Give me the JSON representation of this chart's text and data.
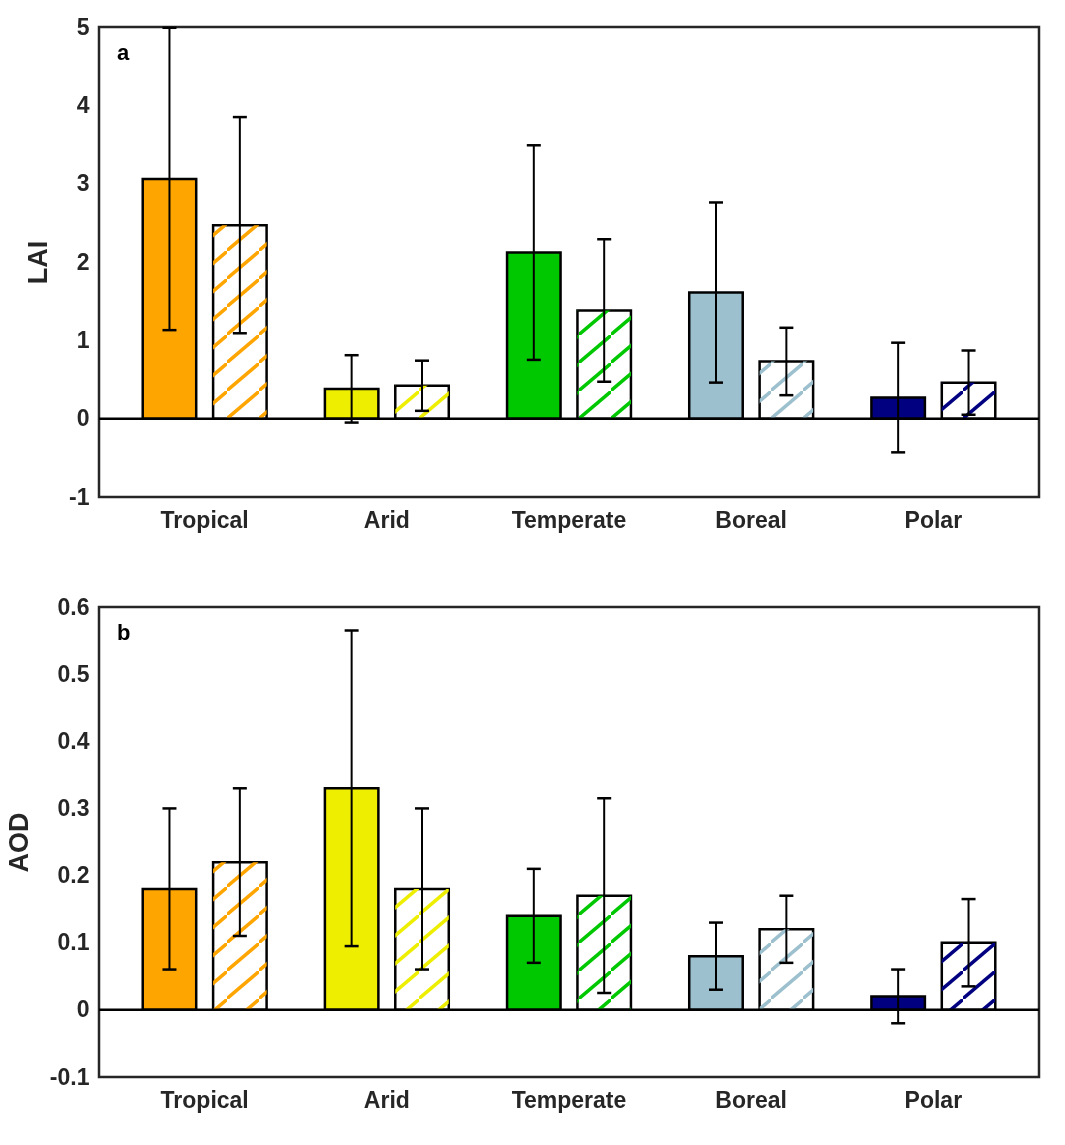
{
  "chart_data": [
    {
      "type": "bar",
      "ylabel": "LAI",
      "annotations": [
        "a"
      ],
      "categories": [
        "Tropical",
        "Arid",
        "Temperate",
        "Boreal",
        "Polar"
      ],
      "ylim": [
        -1,
        5
      ],
      "yticks": [
        -1,
        0,
        1,
        2,
        3,
        4,
        5
      ],
      "ref_lines": [
        {
          "axis": "y",
          "value": 0,
          "color": "#000000"
        }
      ],
      "series": [
        {
          "colors": [
            "#ffa500",
            "#eeee00",
            "#00c800",
            "#9dc0ce",
            "#000080"
          ],
          "values": [
            3.06,
            0.38,
            2.12,
            1.61,
            0.27
          ],
          "errors": [
            1.93,
            0.43,
            1.37,
            1.15,
            0.7
          ]
        },
        {
          "colors": [
            "#ffffff",
            "#ffffff",
            "#ffffff",
            "#ffffff",
            "#ffffff"
          ],
          "values": [
            2.47,
            0.42,
            1.38,
            0.73,
            0.46
          ],
          "errors": [
            1.38,
            0.32,
            0.91,
            0.43,
            0.41
          ]
        }
      ]
    },
    {
      "type": "bar",
      "ylabel": "AOD",
      "annotations": [
        "b"
      ],
      "categories": [
        "Tropical",
        "Arid",
        "Temperate",
        "Boreal",
        "Polar"
      ],
      "ylim": [
        -0.1,
        0.6
      ],
      "yticks": [
        -0.1,
        0,
        0.1,
        0.2,
        0.3,
        0.4,
        0.5,
        0.6
      ],
      "ref_lines": [
        {
          "axis": "y",
          "value": 0,
          "color": "#000000"
        }
      ],
      "series": [
        {
          "colors": [
            "#ffa500",
            "#eeee00",
            "#00c800",
            "#9dc0ce",
            "#000080"
          ],
          "values": [
            0.18,
            0.33,
            0.14,
            0.08,
            0.02
          ],
          "errors": [
            0.12,
            0.235,
            0.07,
            0.05,
            0.04
          ]
        },
        {
          "colors": [
            "#ffffff",
            "#ffffff",
            "#ffffff",
            "#ffffff",
            "#ffffff"
          ],
          "values": [
            0.22,
            0.18,
            0.17,
            0.12,
            0.1
          ],
          "errors": [
            0.11,
            0.12,
            0.145,
            0.05,
            0.065
          ]
        }
      ]
    }
  ]
}
